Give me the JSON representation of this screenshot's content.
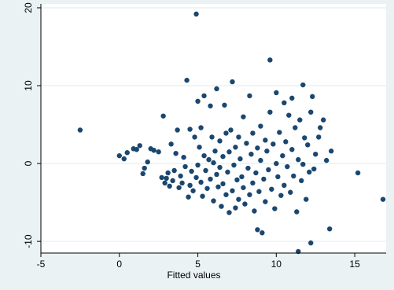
{
  "colors": {
    "outer_background": "#eaf2f3",
    "plot_background": "#ffffff",
    "gridline": "#eaf2f3",
    "marker": "#1a476f",
    "axis": "#000000"
  },
  "chart_data": {
    "type": "scatter",
    "title": "",
    "xlabel": "Fitted values",
    "ylabel": "",
    "xlim": [
      -5,
      17
    ],
    "ylim": [
      -11.5,
      20.5
    ],
    "xticks": [
      -5,
      0,
      5,
      10,
      15
    ],
    "yticks": [
      -10,
      0,
      10,
      20
    ],
    "xtick_labels": [
      "-5",
      "0",
      "5",
      "10",
      "15"
    ],
    "ytick_labels": [
      "-10",
      "0",
      "10",
      "20"
    ],
    "grid": "horizontal",
    "legend": "none",
    "points": [
      [
        -2.5,
        4.3
      ],
      [
        0.0,
        1.0
      ],
      [
        0.3,
        0.6
      ],
      [
        0.5,
        1.4
      ],
      [
        0.9,
        1.9
      ],
      [
        1.1,
        1.8
      ],
      [
        1.3,
        2.3
      ],
      [
        1.5,
        -1.3
      ],
      [
        1.6,
        -0.6
      ],
      [
        1.8,
        0.2
      ],
      [
        2.0,
        1.9
      ],
      [
        2.2,
        1.7
      ],
      [
        2.5,
        1.5
      ],
      [
        2.7,
        -1.8
      ],
      [
        2.8,
        6.1
      ],
      [
        2.9,
        -2.5
      ],
      [
        3.0,
        -1.9
      ],
      [
        3.1,
        -1.2
      ],
      [
        3.2,
        -2.9
      ],
      [
        3.3,
        2.5
      ],
      [
        3.4,
        -2.2
      ],
      [
        3.5,
        -0.9
      ],
      [
        3.6,
        1.3
      ],
      [
        3.7,
        4.3
      ],
      [
        3.8,
        -3.1
      ],
      [
        3.9,
        -1.6
      ],
      [
        4.0,
        -2.5
      ],
      [
        4.1,
        0.8
      ],
      [
        4.2,
        -0.4
      ],
      [
        4.3,
        10.7
      ],
      [
        4.4,
        -4.3
      ],
      [
        4.5,
        -2.8
      ],
      [
        4.5,
        4.4
      ],
      [
        4.6,
        -1.0
      ],
      [
        4.7,
        -3.5
      ],
      [
        4.8,
        3.4
      ],
      [
        4.9,
        19.2
      ],
      [
        4.9,
        -1.8
      ],
      [
        5.0,
        8.0
      ],
      [
        5.0,
        -0.2
      ],
      [
        5.1,
        2.1
      ],
      [
        5.2,
        -2.4
      ],
      [
        5.2,
        4.6
      ],
      [
        5.3,
        -4.2
      ],
      [
        5.4,
        8.7
      ],
      [
        5.4,
        1.0
      ],
      [
        5.5,
        -0.9
      ],
      [
        5.6,
        -3.2
      ],
      [
        5.7,
        0.5
      ],
      [
        5.8,
        7.4
      ],
      [
        5.8,
        -2.0
      ],
      [
        5.9,
        3.4
      ],
      [
        6.0,
        -4.8
      ],
      [
        6.0,
        0.1
      ],
      [
        6.1,
        1.6
      ],
      [
        6.2,
        -1.4
      ],
      [
        6.2,
        9.6
      ],
      [
        6.3,
        -3.0
      ],
      [
        6.4,
        2.9
      ],
      [
        6.4,
        -0.5
      ],
      [
        6.5,
        -5.5
      ],
      [
        6.6,
        0.9
      ],
      [
        6.6,
        -2.6
      ],
      [
        6.7,
        7.5
      ],
      [
        6.8,
        -4.0
      ],
      [
        6.8,
        3.9
      ],
      [
        6.9,
        -1.1
      ],
      [
        7.0,
        -6.3
      ],
      [
        7.0,
        1.5
      ],
      [
        7.1,
        4.3
      ],
      [
        7.2,
        -3.5
      ],
      [
        7.2,
        10.5
      ],
      [
        7.3,
        -0.2
      ],
      [
        7.4,
        -5.7
      ],
      [
        7.4,
        2.1
      ],
      [
        7.5,
        -2.1
      ],
      [
        7.6,
        3.4
      ],
      [
        7.6,
        -4.6
      ],
      [
        7.7,
        0.6
      ],
      [
        7.8,
        -1.7
      ],
      [
        7.9,
        6.0
      ],
      [
        7.9,
        -3.1
      ],
      [
        8.0,
        -5.2
      ],
      [
        8.1,
        2.6
      ],
      [
        8.2,
        -0.6
      ],
      [
        8.3,
        8.7
      ],
      [
        8.3,
        -4.0
      ],
      [
        8.4,
        1.2
      ],
      [
        8.5,
        -2.5
      ],
      [
        8.5,
        3.9
      ],
      [
        8.6,
        -6.1
      ],
      [
        8.7,
        -1.2
      ],
      [
        8.8,
        -8.5
      ],
      [
        8.8,
        2.0
      ],
      [
        8.9,
        -3.6
      ],
      [
        9.0,
        0.4
      ],
      [
        9.0,
        4.8
      ],
      [
        9.1,
        -8.9
      ],
      [
        9.2,
        -2.0
      ],
      [
        9.3,
        3.0
      ],
      [
        9.3,
        -4.9
      ],
      [
        9.4,
        1.6
      ],
      [
        9.5,
        -0.8
      ],
      [
        9.6,
        13.3
      ],
      [
        9.6,
        6.6
      ],
      [
        9.7,
        -3.3
      ],
      [
        9.8,
        2.5
      ],
      [
        9.9,
        -5.8
      ],
      [
        10.0,
        0.0
      ],
      [
        10.0,
        9.1
      ],
      [
        10.1,
        -1.7
      ],
      [
        10.2,
        4.0
      ],
      [
        10.3,
        -4.1
      ],
      [
        10.4,
        1.0
      ],
      [
        10.5,
        7.8
      ],
      [
        10.5,
        -2.8
      ],
      [
        10.6,
        2.8
      ],
      [
        10.7,
        -0.4
      ],
      [
        10.8,
        6.2
      ],
      [
        10.9,
        -3.7
      ],
      [
        11.0,
        8.4
      ],
      [
        11.0,
        1.8
      ],
      [
        11.1,
        -1.6
      ],
      [
        11.2,
        4.6
      ],
      [
        11.3,
        -6.2
      ],
      [
        11.4,
        -11.3
      ],
      [
        11.4,
        0.5
      ],
      [
        11.5,
        5.6
      ],
      [
        11.6,
        -2.2
      ],
      [
        11.7,
        10.1
      ],
      [
        11.7,
        -0.1
      ],
      [
        11.8,
        3.3
      ],
      [
        11.9,
        -4.6
      ],
      [
        12.0,
        2.4
      ],
      [
        12.1,
        -1.1
      ],
      [
        12.2,
        -10.2
      ],
      [
        12.2,
        6.6
      ],
      [
        12.3,
        8.6
      ],
      [
        12.4,
        -0.7
      ],
      [
        12.5,
        1.2
      ],
      [
        12.7,
        3.4
      ],
      [
        12.8,
        4.6
      ],
      [
        13.0,
        5.6
      ],
      [
        13.2,
        0.4
      ],
      [
        13.4,
        -8.4
      ],
      [
        13.5,
        1.6
      ],
      [
        15.2,
        -1.2
      ],
      [
        16.8,
        -4.6
      ]
    ]
  }
}
